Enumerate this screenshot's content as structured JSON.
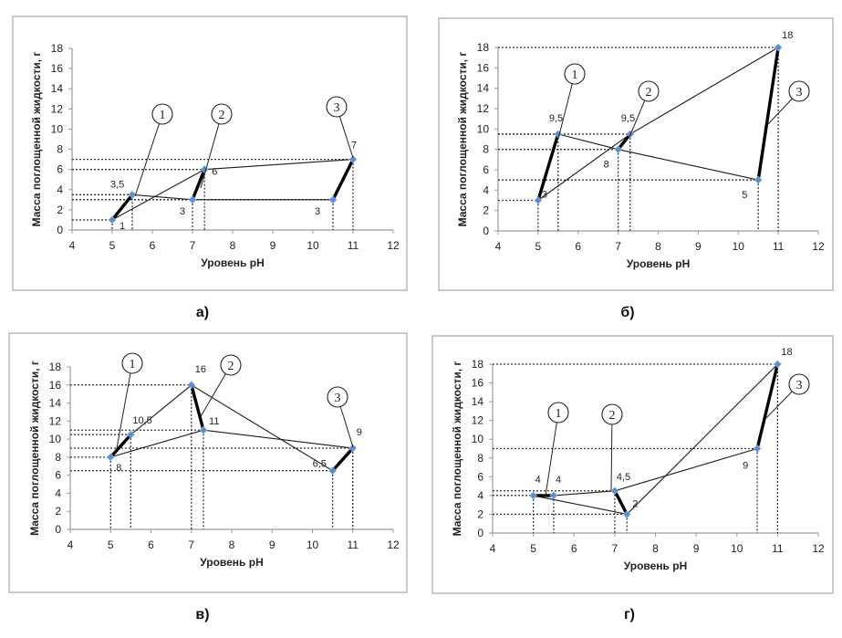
{
  "figure": {
    "title": "",
    "captions": [
      "а)",
      "б)",
      "в)",
      "г)"
    ]
  },
  "chart_data": [
    {
      "id": "a",
      "caption": "а)",
      "type": "line",
      "xlabel": "Уровень pH",
      "ylabel": "Масса поглощенной жидкости, г",
      "xlim": [
        4,
        12
      ],
      "ylim": [
        0,
        18
      ],
      "xticks": [
        4,
        5,
        6,
        7,
        8,
        9,
        10,
        11,
        12
      ],
      "yticks": [
        0,
        2,
        4,
        6,
        8,
        10,
        12,
        14,
        16,
        18
      ],
      "grid": false,
      "points": [
        {
          "x": 5,
          "y": 1,
          "label": "1"
        },
        {
          "x": 5.5,
          "y": 3.5,
          "label": "3,5"
        },
        {
          "x": 7,
          "y": 3,
          "label": "3"
        },
        {
          "x": 7.3,
          "y": 6,
          "label": "6"
        },
        {
          "x": 10.5,
          "y": 3,
          "label": "3"
        },
        {
          "x": 11,
          "y": 7,
          "label": "7"
        }
      ],
      "series": [
        {
          "name": "thin-A",
          "style": "thin",
          "x": [
            5,
            7.3,
            11
          ],
          "y": [
            1,
            6,
            7
          ]
        },
        {
          "name": "thin-B",
          "style": "thin",
          "x": [
            5.5,
            7,
            10.5
          ],
          "y": [
            3.5,
            3,
            3
          ]
        },
        {
          "name": "1",
          "style": "thick",
          "x": [
            5,
            5.5
          ],
          "y": [
            1,
            3.5
          ]
        },
        {
          "name": "2",
          "style": "thick",
          "x": [
            7,
            7.3
          ],
          "y": [
            3,
            6
          ]
        },
        {
          "name": "3",
          "style": "thick",
          "x": [
            10.5,
            11
          ],
          "y": [
            3,
            7
          ]
        }
      ],
      "callouts": [
        "1",
        "2",
        "3"
      ]
    },
    {
      "id": "b",
      "caption": "б)",
      "type": "line",
      "xlabel": "Уровень pH",
      "ylabel": "Масса поглощенной жидкости, г",
      "xlim": [
        4,
        12
      ],
      "ylim": [
        0,
        18
      ],
      "xticks": [
        4,
        5,
        6,
        7,
        8,
        9,
        10,
        11,
        12
      ],
      "yticks": [
        0,
        2,
        4,
        6,
        8,
        10,
        12,
        14,
        16,
        18
      ],
      "grid": false,
      "points": [
        {
          "x": 5,
          "y": 3,
          "label": "3"
        },
        {
          "x": 5.5,
          "y": 9.5,
          "label": "9,5"
        },
        {
          "x": 7,
          "y": 8,
          "label": "8"
        },
        {
          "x": 7.3,
          "y": 9.5,
          "label": "9,5"
        },
        {
          "x": 10.5,
          "y": 5,
          "label": "5"
        },
        {
          "x": 11,
          "y": 18,
          "label": "18"
        }
      ],
      "series": [
        {
          "name": "thin-A",
          "style": "thin",
          "x": [
            5,
            7.3,
            11
          ],
          "y": [
            3,
            9.5,
            18
          ]
        },
        {
          "name": "thin-B",
          "style": "thin",
          "x": [
            5.5,
            7,
            10.5
          ],
          "y": [
            9.5,
            8,
            5
          ]
        },
        {
          "name": "1",
          "style": "thick",
          "x": [
            5,
            5.5
          ],
          "y": [
            3,
            9.5
          ]
        },
        {
          "name": "2",
          "style": "thick",
          "x": [
            7,
            7.3
          ],
          "y": [
            8,
            9.5
          ]
        },
        {
          "name": "3",
          "style": "thick",
          "x": [
            10.5,
            11
          ],
          "y": [
            5,
            18
          ]
        }
      ],
      "callouts": [
        "1",
        "2",
        "3"
      ]
    },
    {
      "id": "c",
      "caption": "в)",
      "type": "line",
      "xlabel": "Уровень pH",
      "ylabel": "Масса поглощенной жидкости, г",
      "xlim": [
        4,
        12
      ],
      "ylim": [
        0,
        18
      ],
      "xticks": [
        4,
        5,
        6,
        7,
        8,
        9,
        10,
        11,
        12
      ],
      "yticks": [
        0,
        2,
        4,
        6,
        8,
        10,
        12,
        14,
        16,
        18
      ],
      "grid": false,
      "points": [
        {
          "x": 5,
          "y": 8,
          "label": "8"
        },
        {
          "x": 5.5,
          "y": 10.5,
          "label": "10,5"
        },
        {
          "x": 7,
          "y": 16,
          "label": "16"
        },
        {
          "x": 7.3,
          "y": 11,
          "label": "11"
        },
        {
          "x": 10.5,
          "y": 6.5,
          "label": "6,5"
        },
        {
          "x": 11,
          "y": 9,
          "label": "9"
        }
      ],
      "series": [
        {
          "name": "thin-A",
          "style": "thin",
          "x": [
            5,
            7.3,
            11
          ],
          "y": [
            8,
            11,
            9
          ]
        },
        {
          "name": "thin-B",
          "style": "thin",
          "x": [
            5.5,
            7,
            10.5
          ],
          "y": [
            10.5,
            16,
            6.5
          ]
        },
        {
          "name": "1",
          "style": "thick",
          "x": [
            5,
            5.5
          ],
          "y": [
            8,
            10.5
          ]
        },
        {
          "name": "2",
          "style": "thick",
          "x": [
            7,
            7.3
          ],
          "y": [
            16,
            11
          ]
        },
        {
          "name": "3",
          "style": "thick",
          "x": [
            10.5,
            11
          ],
          "y": [
            6.5,
            9
          ]
        }
      ],
      "callouts": [
        "1",
        "2",
        "3"
      ]
    },
    {
      "id": "d",
      "caption": "г)",
      "type": "line",
      "xlabel": "Уровень pH",
      "ylabel": "Масса поглощенной жидкости, г",
      "xlim": [
        4,
        12
      ],
      "ylim": [
        0,
        18
      ],
      "xticks": [
        4,
        5,
        6,
        7,
        8,
        9,
        10,
        11,
        12
      ],
      "yticks": [
        0,
        2,
        4,
        6,
        8,
        10,
        12,
        14,
        16,
        18
      ],
      "grid": false,
      "points": [
        {
          "x": 5,
          "y": 4,
          "label": "4"
        },
        {
          "x": 5.5,
          "y": 4,
          "label": "4"
        },
        {
          "x": 7,
          "y": 4.5,
          "label": "4,5"
        },
        {
          "x": 7.3,
          "y": 2,
          "label": "2"
        },
        {
          "x": 10.5,
          "y": 9,
          "label": "9"
        },
        {
          "x": 11,
          "y": 18,
          "label": "18"
        }
      ],
      "series": [
        {
          "name": "thin-A",
          "style": "thin",
          "x": [
            5,
            7.3,
            11
          ],
          "y": [
            4,
            2,
            18
          ]
        },
        {
          "name": "thin-B",
          "style": "thin",
          "x": [
            5.5,
            7,
            10.5
          ],
          "y": [
            4,
            4.5,
            9
          ]
        },
        {
          "name": "1",
          "style": "thick",
          "x": [
            5,
            5.5
          ],
          "y": [
            4,
            4
          ]
        },
        {
          "name": "2",
          "style": "thick",
          "x": [
            7,
            7.3
          ],
          "y": [
            4.5,
            2
          ]
        },
        {
          "name": "3",
          "style": "thick",
          "x": [
            10.5,
            11
          ],
          "y": [
            9,
            18
          ]
        }
      ],
      "callouts": [
        "1",
        "2",
        "3"
      ]
    }
  ]
}
